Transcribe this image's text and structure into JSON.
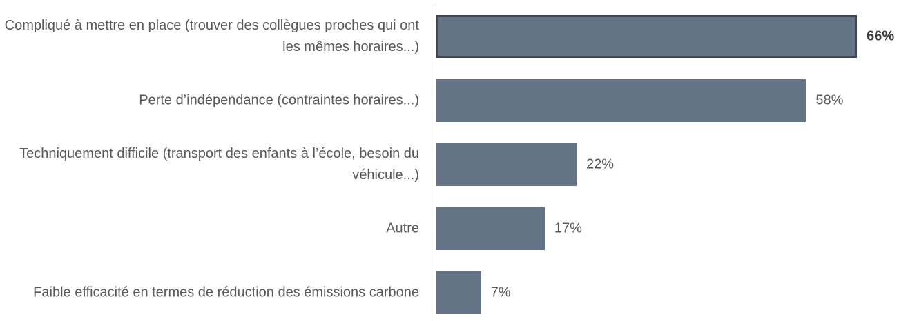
{
  "chart_data": {
    "type": "bar",
    "orientation": "horizontal",
    "categories": [
      "Compliqué à mettre en place (trouver des collègues proches qui ont les mêmes horaires...)",
      "Perte d’indépendance (contraintes horaires...)",
      "Techniquement difficile (transport des enfants à l’école, besoin du véhicule...)",
      "Autre",
      "Faible efficacité en termes de réduction des émissions carbone"
    ],
    "values": [
      66,
      58,
      22,
      17,
      7
    ],
    "value_labels": [
      "66%",
      "58%",
      "22%",
      "17%",
      "7%"
    ],
    "color": "#647486"
  }
}
